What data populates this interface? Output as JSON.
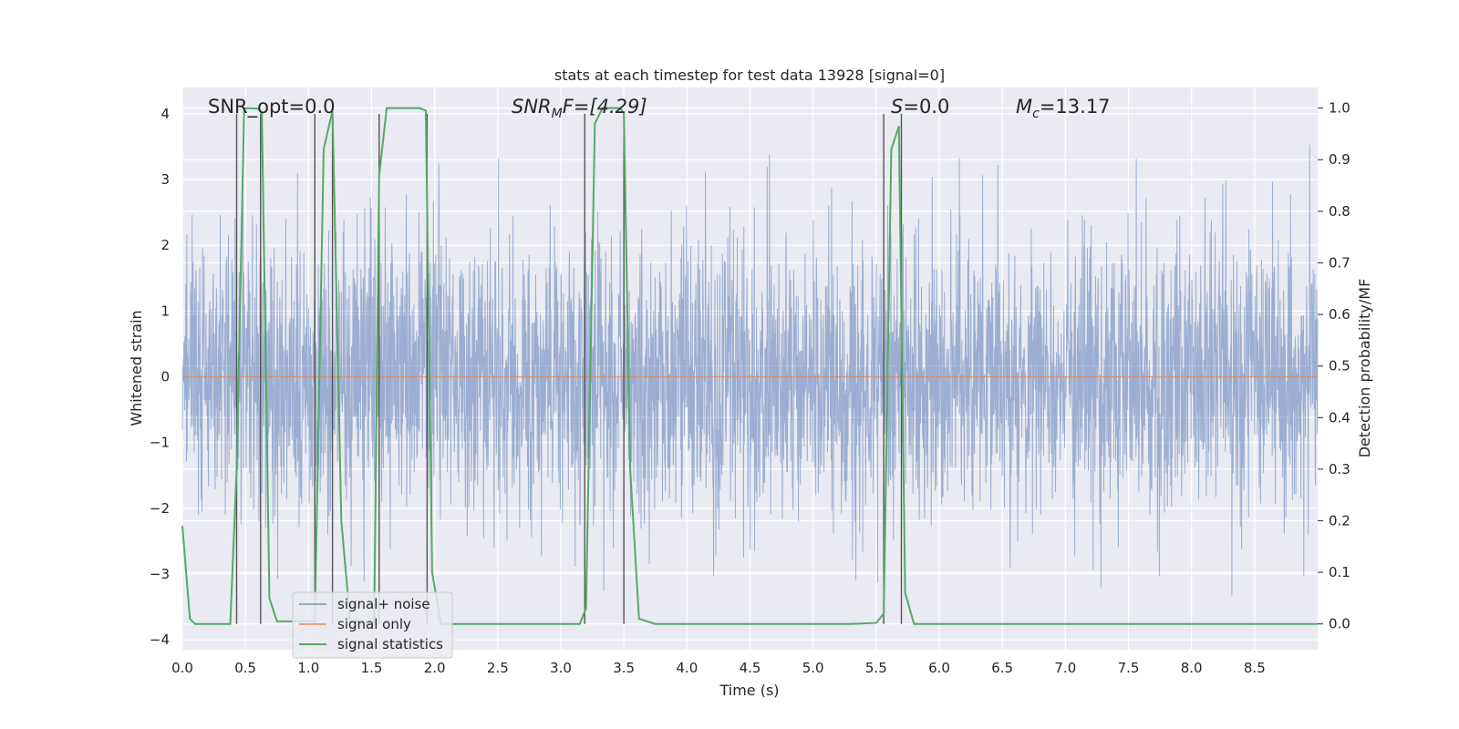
{
  "chart_data": {
    "type": "line",
    "title": "stats at each timestep for test data 13928 [signal=0]",
    "xlabel": "Time (s)",
    "ylabel": "Whitened strain",
    "ylabel_right": "Detection probability/MF",
    "xlim": [
      0.0,
      9.0
    ],
    "ylim": [
      -4.15,
      4.4
    ],
    "ylim_right": [
      -0.05,
      1.04
    ],
    "xticks": [
      "0.0",
      "0.5",
      "1.0",
      "1.5",
      "2.0",
      "2.5",
      "3.0",
      "3.5",
      "4.0",
      "4.5",
      "5.0",
      "5.5",
      "6.0",
      "6.5",
      "7.0",
      "7.5",
      "8.0",
      "8.5"
    ],
    "yticks": [
      "4",
      "3",
      "2",
      "1",
      "0",
      "−1",
      "−2",
      "−3",
      "−4"
    ],
    "yticks_right": [
      "1.0",
      "0.9",
      "0.8",
      "0.7",
      "0.6",
      "0.5",
      "0.4",
      "0.3",
      "0.2",
      "0.1",
      "0.0"
    ],
    "grid": true,
    "legend_position": "lower-left",
    "annotations": {
      "snr_opt": "SNR_opt=0.0",
      "snr_mf_main": "SNR",
      "snr_mf_sub": "M",
      "snr_mf_rest": "F=[4.29]",
      "s_main": "S",
      "s_rest": "=0.0",
      "mc_main": "M",
      "mc_sub": "c",
      "mc_rest": "=13.17"
    },
    "series": [
      {
        "name": "signal+ noise",
        "color": "#4c72b0",
        "description_values": "noise band approx ±1.5 with peaks reaching ~±4"
      },
      {
        "name": "signal only",
        "color": "#dd8452",
        "x": [
          0.0,
          9.0
        ],
        "y": [
          0.0,
          0.0
        ]
      },
      {
        "name": "signal statistics",
        "color": "#55a868",
        "x": [
          0.0,
          0.06,
          0.1,
          0.38,
          0.43,
          0.49,
          0.6,
          0.63,
          0.69,
          0.75,
          1.05,
          1.12,
          1.19,
          1.26,
          1.33,
          1.52,
          1.56,
          1.62,
          1.88,
          1.93,
          1.98,
          2.05,
          3.15,
          3.2,
          3.27,
          3.33,
          3.47,
          3.5,
          3.55,
          3.62,
          3.75,
          5.3,
          5.5,
          5.56,
          5.62,
          5.68,
          5.73,
          5.8,
          9.0
        ],
        "y": [
          0.19,
          0.01,
          0.0,
          0.0,
          0.3,
          1.0,
          0.999,
          0.99,
          0.05,
          0.005,
          0.005,
          0.92,
          0.995,
          0.2,
          0.005,
          0.0,
          0.87,
          1.0,
          1.0,
          0.995,
          0.1,
          0.0,
          0.0,
          0.03,
          0.97,
          1.0,
          1.0,
          0.99,
          0.3,
          0.01,
          0.0,
          0.0,
          0.002,
          0.02,
          0.92,
          0.965,
          0.06,
          0.0,
          0.0
        ]
      }
    ],
    "vertical_markers_x": [
      0.43,
      0.62,
      1.05,
      1.19,
      1.56,
      1.94,
      3.19,
      3.5,
      5.56,
      5.7
    ],
    "colors": {
      "background": "#eaeaf2",
      "grid": "#ffffff",
      "marker": "#555555"
    }
  }
}
